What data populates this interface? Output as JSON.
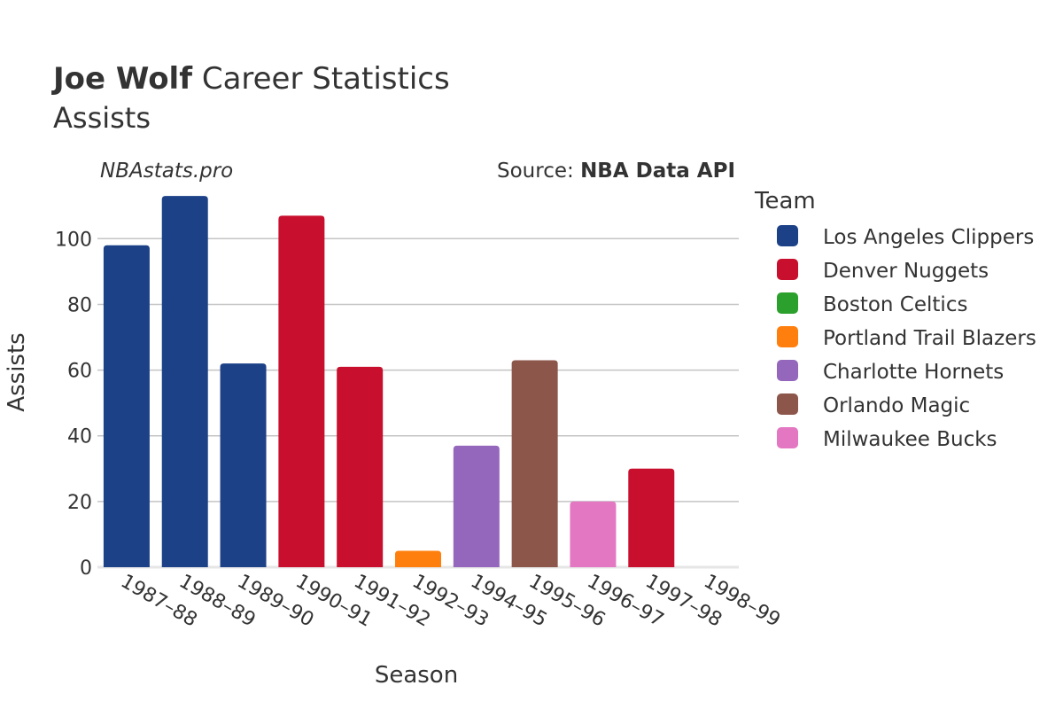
{
  "title": {
    "player": "Joe Wolf",
    "rest": " Career Statistics",
    "subtitle": "Assists"
  },
  "watermark": "NBAstats.pro",
  "source": {
    "prefix": "Source: ",
    "name": "NBA Data API"
  },
  "legend": {
    "title": "Team",
    "items": [
      {
        "name": "Los Angeles Clippers",
        "color": "#1c4187"
      },
      {
        "name": "Denver Nuggets",
        "color": "#c8102e"
      },
      {
        "name": "Boston Celtics",
        "color": "#2ca02c"
      },
      {
        "name": "Portland Trail Blazers",
        "color": "#ff7f0e"
      },
      {
        "name": "Charlotte Hornets",
        "color": "#9467bd"
      },
      {
        "name": "Orlando Magic",
        "color": "#8c564b"
      },
      {
        "name": "Milwaukee Bucks",
        "color": "#e377c2"
      }
    ]
  },
  "chart_data": {
    "type": "bar",
    "xlabel": "Season",
    "ylabel": "Assists",
    "ylim": [
      0,
      116
    ],
    "yticks": [
      0,
      20,
      40,
      60,
      80,
      100
    ],
    "grid": true,
    "legend_position": "right",
    "categories": [
      "1987–88",
      "1988–89",
      "1989–90",
      "1990–91",
      "1991–92",
      "1992–93",
      "1994–95",
      "1995–96",
      "1996–97",
      "1997–98",
      "1998–99"
    ],
    "values": [
      98,
      113,
      62,
      107,
      61,
      5,
      37,
      63,
      20,
      30,
      0
    ],
    "teams": [
      "Los Angeles Clippers",
      "Los Angeles Clippers",
      "Los Angeles Clippers",
      "Denver Nuggets",
      "Denver Nuggets",
      "Portland Trail Blazers",
      "Charlotte Hornets",
      "Orlando Magic",
      "Milwaukee Bucks",
      "Denver Nuggets",
      "Boston Celtics"
    ]
  }
}
